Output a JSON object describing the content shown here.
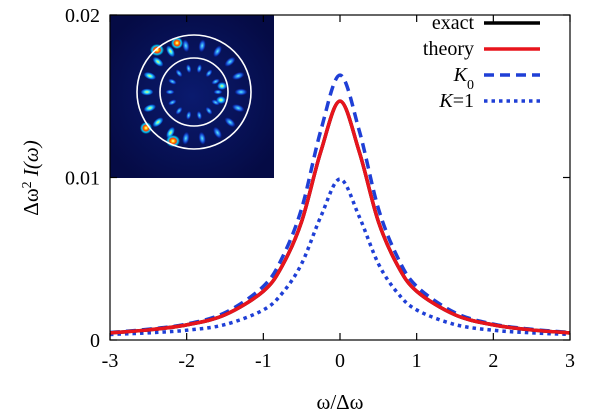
{
  "chart_data": {
    "type": "line",
    "xlabel": "ω/Δω",
    "ylabel_main": "Δω",
    "ylabel_sup": "2",
    "ylabel_tail": " I(ω)",
    "xlim": [
      -3,
      3
    ],
    "ylim": [
      0,
      0.02
    ],
    "x_ticks": [
      -3,
      -2,
      -1,
      0,
      1,
      2,
      3
    ],
    "x_tick_labels": [
      "-3",
      "-2",
      "-1",
      "0",
      "1",
      "2",
      "3"
    ],
    "y_ticks": [
      0,
      0.01,
      0.02
    ],
    "y_tick_labels": [
      "0",
      "0.01",
      "0.02"
    ],
    "grid": false,
    "legend_position": "top-right",
    "x": [
      -3,
      -2.5,
      -2,
      -1.5,
      -1,
      -0.75,
      -0.5,
      -0.25,
      0,
      0.25,
      0.5,
      0.75,
      1,
      1.5,
      2,
      2.5,
      3
    ],
    "series": [
      {
        "name": "exact",
        "color": "#000000",
        "style": "solid",
        "values": [
          0.00044,
          0.00062,
          0.00093,
          0.00155,
          0.003,
          0.0046,
          0.0073,
          0.0116,
          0.0147,
          0.0116,
          0.0073,
          0.0046,
          0.003,
          0.00155,
          0.00093,
          0.00062,
          0.00044
        ]
      },
      {
        "name": "theory",
        "color": "#e8141c",
        "style": "solid",
        "values": [
          0.00044,
          0.00062,
          0.00093,
          0.00155,
          0.003,
          0.0046,
          0.0073,
          0.0116,
          0.0147,
          0.0116,
          0.0073,
          0.0046,
          0.003,
          0.00155,
          0.00093,
          0.00062,
          0.00044
        ]
      },
      {
        "name_main": "K",
        "name_sub": "0",
        "color": "#1f3fd6",
        "style": "dashed",
        "values": [
          0.00046,
          0.00066,
          0.00098,
          0.00168,
          0.0033,
          0.0051,
          0.0081,
          0.0129,
          0.0163,
          0.0129,
          0.0081,
          0.0051,
          0.0033,
          0.00168,
          0.00098,
          0.00066,
          0.00046
        ]
      },
      {
        "name_main": "K",
        "name_tail": "=1",
        "color": "#1f3fd6",
        "style": "dotted",
        "values": [
          0.00034,
          0.00044,
          0.0006,
          0.00095,
          0.00185,
          0.0029,
          0.0047,
          0.0076,
          0.0099,
          0.0076,
          0.0047,
          0.0029,
          0.00185,
          0.00095,
          0.0006,
          0.00044,
          0.00034
        ]
      }
    ]
  },
  "inset": {
    "description_icon": "ring-intensity-pattern-image"
  }
}
